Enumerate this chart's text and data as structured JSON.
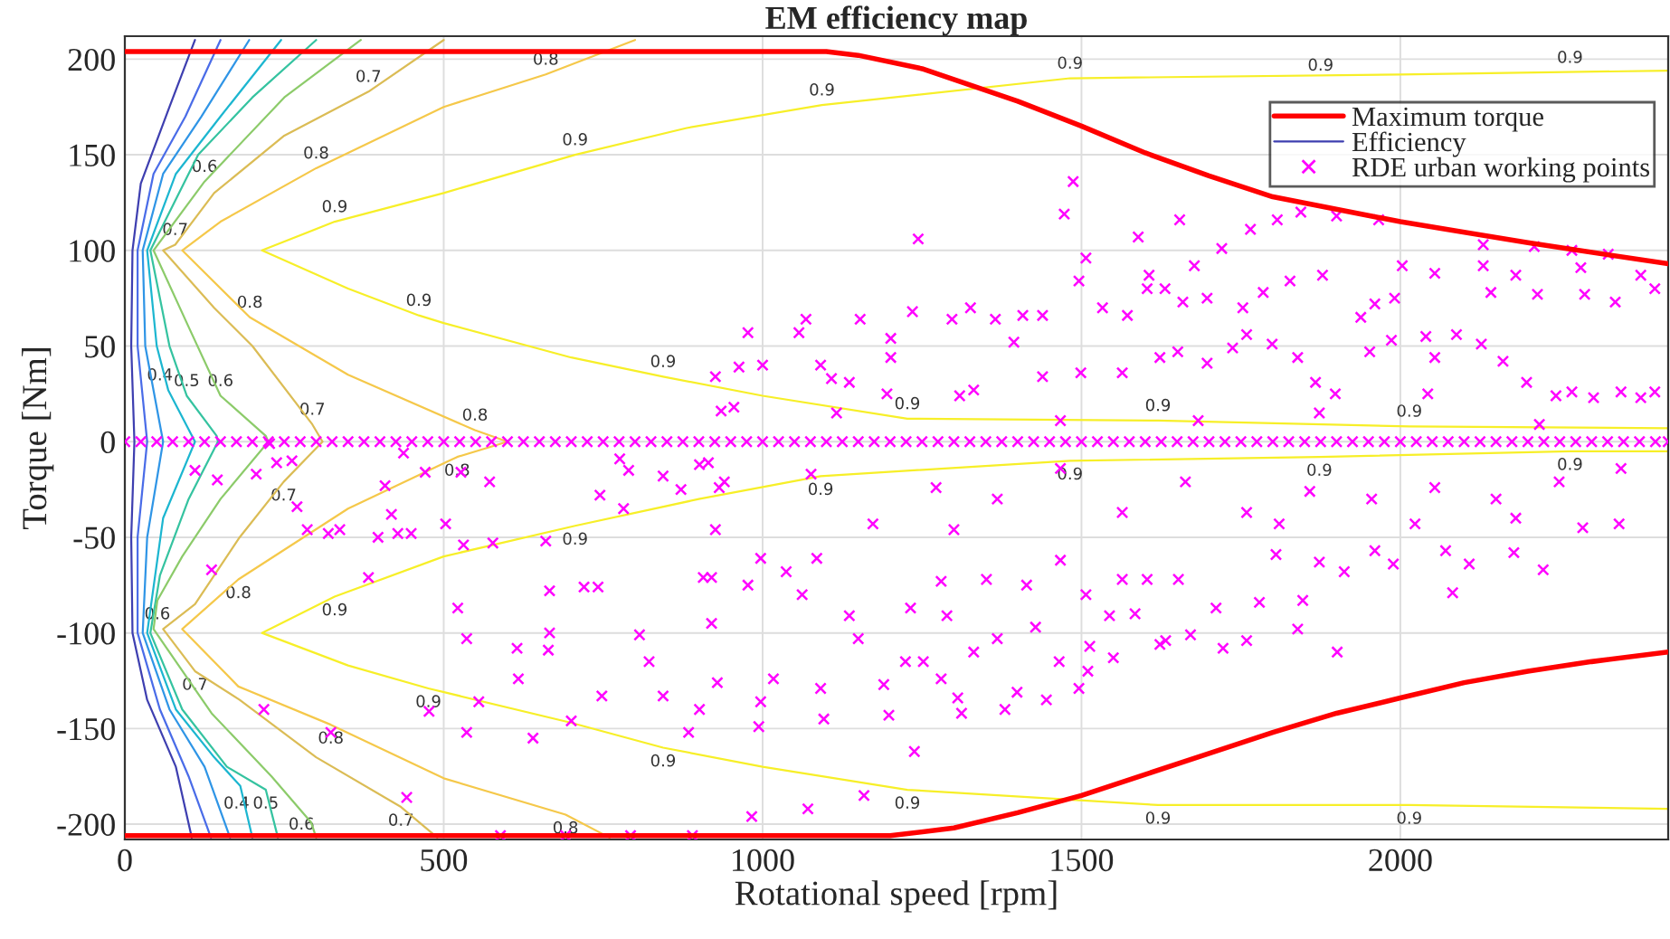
{
  "chart_data": {
    "type": "line",
    "title": "EM efficiency map",
    "xlabel": "Rotational speed [rpm]",
    "ylabel": "Torque [Nm]",
    "xlim": [
      0,
      2420
    ],
    "ylim": [
      -208,
      212
    ],
    "xticks": [
      0,
      500,
      1000,
      1500,
      2000
    ],
    "yticks": [
      -200,
      -150,
      -100,
      -50,
      0,
      50,
      100,
      150,
      200
    ],
    "grid": true,
    "legend": "top right",
    "series": [
      {
        "name": "Maximum torque",
        "color": "#ff0000",
        "x": [
          0,
          1100,
          1150,
          1250,
          1400,
          1500,
          1600,
          1700,
          1800,
          2000,
          2200,
          2420,
          null,
          0,
          1200,
          1300,
          1400,
          1500,
          1600,
          1700,
          1800,
          1900,
          2000,
          2100,
          2200,
          2300,
          2420
        ],
        "values": [
          204,
          204,
          202,
          195,
          178,
          165,
          151,
          139,
          128,
          115,
          104,
          93,
          null,
          -206,
          -206,
          -202,
          -194,
          -185,
          -174,
          -163,
          -152,
          -142,
          -134,
          -126,
          -120,
          -115,
          -110
        ]
      },
      {
        "name": "Efficiency",
        "color": "#3e3fb0",
        "x": [
          110,
          70,
          25,
          12,
          10,
          15,
          10,
          12,
          35,
          80,
          105
        ],
        "values": [
          210,
          175,
          135,
          100,
          50,
          0,
          -50,
          -100,
          -135,
          -170,
          -207
        ]
      },
      {
        "color": "#4a6ce8",
        "x": [
          150,
          95,
          45,
          20,
          20,
          35,
          20,
          20,
          55,
          100,
          135
        ],
        "values": [
          210,
          170,
          140,
          100,
          50,
          0,
          -50,
          -100,
          -140,
          -175,
          -207
        ]
      },
      {
        "color": "#2f95e6",
        "x": [
          195,
          120,
          60,
          28,
          32,
          60,
          35,
          28,
          70,
          125,
          165
        ],
        "values": [
          210,
          170,
          140,
          100,
          50,
          0,
          -50,
          -100,
          -140,
          -170,
          -207
        ]
      },
      {
        "color": "#1cb6d0",
        "x": [
          245,
          150,
          80,
          35,
          50,
          68,
          110,
          60,
          35,
          80,
          140,
          181,
          200
        ],
        "values": [
          210,
          170,
          140,
          100,
          50,
          27,
          0,
          -40,
          -100,
          -140,
          -165,
          -180,
          -207
        ]
      },
      {
        "color": "#35c3a0",
        "x": [
          300,
          200,
          115,
          40,
          70,
          97,
          144,
          146,
          100,
          55,
          40,
          90,
          160,
          221,
          240
        ],
        "values": [
          210,
          180,
          150,
          100,
          50,
          24,
          3,
          0,
          -30,
          -70,
          -100,
          -140,
          -170,
          -182,
          -207
        ]
      },
      {
        "color": "#8ccb6a",
        "x": [
          370,
          250,
          125,
          45,
          100,
          150,
          221,
          225,
          150,
          90,
          51,
          45,
          136,
          230,
          292,
          300
        ],
        "values": [
          210,
          180,
          136,
          100,
          60,
          24,
          3,
          0,
          -30,
          -60,
          -83,
          -98,
          -142,
          -175,
          -199,
          -207
        ]
      },
      {
        "color": "#dbbc55",
        "x": [
          500,
          382,
          250,
          140,
          79,
          60,
          140,
          200,
          294,
          310,
          249,
          180,
          110,
          60,
          110,
          180,
          300,
          433,
          490
        ],
        "values": [
          210,
          183,
          160,
          130,
          103,
          100,
          70,
          50,
          9,
          0,
          -21,
          -50,
          -85,
          -98,
          -120,
          -135,
          -165,
          -191,
          -207
        ]
      },
      {
        "color": "#f5c84a",
        "x": [
          800,
          660,
          500,
          300,
          150,
          90,
          196,
          350,
          549,
          600,
          521,
          350,
          178,
          90,
          178,
          323,
          500,
          691,
          760
        ],
        "values": [
          210,
          192,
          175,
          143,
          115,
          100,
          65,
          35,
          6,
          0,
          -8,
          -35,
          -72,
          -98,
          -128,
          -148,
          -176,
          -195,
          -207
        ]
      },
      {
        "color": "#f7ef28",
        "x": [
          2420,
          2000,
          1482,
          1093,
          881,
          706,
          500,
          329,
          215,
          350,
          461,
          500,
          700,
          844,
          1000,
          1227,
          1620,
          2014,
          2420
        ],
        "values": [
          194,
          192,
          190,
          176,
          164,
          150,
          130,
          115,
          100,
          80,
          66,
          62,
          44,
          34,
          24,
          12,
          11,
          8,
          7
        ]
      },
      {
        "color": "#f7ef28",
        "x": [
          2420,
          2266,
          1873,
          1482,
          1091,
          900,
          706,
          500,
          329,
          215,
          350,
          476,
          700,
          844,
          1000,
          1227,
          1620,
          2014,
          2420
        ],
        "values": [
          -5,
          -5,
          -8,
          -10,
          -18,
          -30,
          -44,
          -60,
          -81,
          -100,
          -117,
          -129,
          -147,
          -160,
          -170,
          -182,
          -190,
          -190,
          -192
        ]
      },
      {
        "name": "RDE urban working points",
        "type": "scatter",
        "color": "#ff00ff",
        "marker": "cross",
        "x": [
          0,
          25,
          50,
          75,
          100,
          125,
          150,
          175,
          200,
          225,
          250,
          275,
          300,
          325,
          350,
          375,
          400,
          425,
          450,
          475,
          500,
          525,
          550,
          575,
          600,
          625,
          650,
          675,
          700,
          725,
          750,
          775,
          800,
          825,
          850,
          875,
          900,
          925,
          950,
          975,
          1000,
          1025,
          1050,
          1075,
          1100,
          1125,
          1150,
          1175,
          1200,
          1225,
          1250,
          1275,
          1300,
          1325,
          1350,
          1375,
          1400,
          1425,
          1450,
          1475,
          1500,
          1525,
          1550,
          1575,
          1600,
          1625,
          1650,
          1675,
          1700,
          1725,
          1750,
          1775,
          1800,
          1825,
          1850,
          1875,
          1900,
          1925,
          1950,
          1975,
          2000,
          2025,
          2050,
          2075,
          2100,
          2125,
          2150,
          2175,
          2200,
          2225,
          2250,
          2275,
          2300,
          2325,
          2350,
          2375,
          2400,
          2420,
          110,
          145,
          206,
          227,
          238,
          262,
          270,
          286,
          319,
          337,
          136,
          218,
          323,
          382,
          408,
          397,
          418,
          428,
          449,
          437,
          471,
          477,
          442,
          503,
          527,
          531,
          522,
          536,
          555,
          536,
          572,
          577,
          615,
          617,
          640,
          660,
          666,
          666,
          664,
          700,
          720,
          742,
          745,
          748,
          782,
          776,
          790,
          807,
          822,
          844,
          844,
          872,
          884,
          907,
          932,
          915,
          589,
          691,
          793,
          890,
          1487,
          1473,
          1244,
          1589,
          1654,
          1720,
          1765,
          1807,
          1844,
          1900,
          1966,
          2130,
          2210,
          2269,
          2326,
          1507,
          1496,
          1677,
          1606,
          1878,
          2003,
          2054,
          2130,
          2181,
          2283,
          2377,
          977,
          1057,
          1068,
          1153,
          1201,
          1235,
          1297,
          1326,
          1365,
          1408,
          1439,
          1533,
          1572,
          1603,
          1631,
          1659,
          1697,
          1753,
          1785,
          1827,
          1938,
          1960,
          1991,
          2142,
          2215,
          2289,
          2337,
          2399,
          926,
          935,
          955,
          963,
          1000,
          1091,
          1108,
          1136,
          1201,
          1195,
          1309,
          1331,
          1394,
          1439,
          1499,
          1564,
          1623,
          1651,
          1697,
          1737,
          1759,
          1799,
          1839,
          1867,
          1898,
          1952,
          1986,
          2040,
          2088,
          2127,
          2161,
          2198,
          2218,
          2244,
          2269,
          2303,
          2346,
          2377,
          2399,
          2054,
          2043,
          1873,
          1683,
          1467,
          1116,
          901,
          940,
          926,
          920,
          920,
          929,
          901,
          977,
          997,
          997,
          994,
          983,
          1017,
          1037,
          1062,
          1091,
          1096,
          1085,
          1136,
          1150,
          1071,
          1159,
          1198,
          1190,
          1224,
          1232,
          1238,
          1252,
          1280,
          1289,
          1280,
          1306,
          1312,
          1300,
          1331,
          1351,
          1368,
          1380,
          1399,
          1414,
          1428,
          1445,
          1465,
          1467,
          1496,
          1507,
          1510,
          1513,
          1544,
          1550,
          1564,
          1584,
          1603,
          1623,
          1632,
          1652,
          1671,
          1711,
          1722,
          1759,
          1779,
          1805,
          1839,
          1847,
          1901,
          1873,
          1912,
          1960,
          1989,
          2082,
          2108,
          2178,
          2224,
          2286,
          2343,
          2071,
          1467,
          1663,
          1858,
          1955,
          2054,
          2150,
          2249,
          2346,
          1076,
          1272,
          1368,
          1564,
          1759,
          1810,
          2023,
          2181,
          1173
        ],
        "values": [
          0,
          0,
          0,
          0,
          0,
          0,
          0,
          0,
          0,
          0,
          0,
          0,
          0,
          0,
          0,
          0,
          0,
          0,
          0,
          0,
          0,
          0,
          0,
          0,
          0,
          0,
          0,
          0,
          0,
          0,
          0,
          0,
          0,
          0,
          0,
          0,
          0,
          0,
          0,
          0,
          0,
          0,
          0,
          0,
          0,
          0,
          0,
          0,
          0,
          0,
          0,
          0,
          0,
          0,
          0,
          0,
          0,
          0,
          0,
          0,
          0,
          0,
          0,
          0,
          0,
          0,
          0,
          0,
          0,
          0,
          0,
          0,
          0,
          0,
          0,
          0,
          0,
          0,
          0,
          0,
          0,
          0,
          0,
          0,
          0,
          0,
          0,
          0,
          0,
          0,
          0,
          0,
          0,
          0,
          0,
          0,
          0,
          0,
          -15,
          -20,
          -17,
          -1,
          -11,
          -10,
          -34,
          -46,
          -48,
          -46,
          -67,
          -140,
          -152,
          -71,
          -23,
          -50,
          -38,
          -48,
          -48,
          -6,
          -16,
          -141,
          -186,
          -43,
          -16,
          -54,
          -87,
          -103,
          -136,
          -152,
          -21,
          -53,
          -108,
          -124,
          -155,
          -52,
          -78,
          -100,
          -109,
          -146,
          -76,
          -76,
          -28,
          -133,
          -35,
          -9,
          -15,
          -101,
          -115,
          -133,
          -18,
          -25,
          -152,
          -71,
          -24,
          -11,
          -206,
          -206,
          -206,
          -206,
          136,
          119,
          106,
          107,
          116,
          101,
          111,
          116,
          120,
          118,
          116,
          103,
          102,
          100,
          98,
          96,
          84,
          92,
          87,
          87,
          92,
          88,
          92,
          87,
          91,
          87,
          57,
          57,
          64,
          64,
          54,
          68,
          64,
          70,
          64,
          66,
          66,
          70,
          66,
          80,
          80,
          73,
          75,
          70,
          78,
          84,
          65,
          72,
          75,
          78,
          77,
          77,
          73,
          80,
          34,
          16,
          18,
          39,
          40,
          40,
          33,
          31,
          44,
          25,
          24,
          27,
          52,
          34,
          36,
          36,
          44,
          47,
          41,
          49,
          56,
          51,
          44,
          31,
          25,
          47,
          53,
          55,
          56,
          51,
          42,
          31,
          9,
          24,
          26,
          23,
          26,
          23,
          26,
          44,
          25,
          15,
          11,
          11,
          15,
          -12,
          -21,
          -46,
          -71,
          -95,
          -126,
          -140,
          -75,
          -61,
          -136,
          -149,
          -196,
          -124,
          -68,
          -80,
          -129,
          -145,
          -61,
          -91,
          -103,
          -192,
          -185,
          -143,
          -127,
          -115,
          -87,
          -162,
          -115,
          -73,
          -91,
          -124,
          -134,
          -142,
          -46,
          -110,
          -72,
          -103,
          -140,
          -131,
          -75,
          -97,
          -135,
          -115,
          -62,
          -129,
          -80,
          -120,
          -107,
          -91,
          -113,
          -72,
          -90,
          -72,
          -106,
          -104,
          -72,
          -101,
          -87,
          -108,
          -104,
          -84,
          -59,
          -98,
          -83,
          -110,
          -63,
          -68,
          -57,
          -64,
          -79,
          -64,
          -58,
          -67,
          -45,
          -43,
          -57,
          -14,
          -21,
          -26,
          -30,
          -24,
          -30,
          -21,
          -14,
          -17,
          -24,
          -30,
          -37,
          -37,
          -43,
          -43,
          -40,
          -43
        ]
      }
    ],
    "annotations": [
      {
        "text": "0.9",
        "x": 706,
        "y": 150
      },
      {
        "text": "0.9",
        "x": 329,
        "y": 115
      },
      {
        "text": "0.9",
        "x": 461,
        "y": 66
      },
      {
        "text": "0.9",
        "x": 844,
        "y": 34
      },
      {
        "text": "0.9",
        "x": 1093,
        "y": 176
      },
      {
        "text": "0.9",
        "x": 1482,
        "y": 190
      },
      {
        "text": "0.9",
        "x": 1875,
        "y": 189
      },
      {
        "text": "0.9",
        "x": 2266,
        "y": 193
      },
      {
        "text": "0.9",
        "x": 1227,
        "y": 12
      },
      {
        "text": "0.9",
        "x": 1620,
        "y": 11
      },
      {
        "text": "0.9",
        "x": 2014,
        "y": 8
      },
      {
        "text": "0.9",
        "x": 1091,
        "y": -18
      },
      {
        "text": "0.9",
        "x": 1482,
        "y": -10
      },
      {
        "text": "0.9",
        "x": 1873,
        "y": -8
      },
      {
        "text": "0.9",
        "x": 2266,
        "y": -5
      },
      {
        "text": "0.9",
        "x": 706,
        "y": -44
      },
      {
        "text": "0.9",
        "x": 329,
        "y": -81
      },
      {
        "text": "0.9",
        "x": 476,
        "y": -129
      },
      {
        "text": "0.9",
        "x": 844,
        "y": -160
      },
      {
        "text": "0.9",
        "x": 1227,
        "y": -182
      },
      {
        "text": "0.9",
        "x": 1620,
        "y": -190
      },
      {
        "text": "0.9",
        "x": 2014,
        "y": -190
      },
      {
        "text": "0.8",
        "x": 660,
        "y": 192
      },
      {
        "text": "0.8",
        "x": 300,
        "y": 143
      },
      {
        "text": "0.8",
        "x": 196,
        "y": 65
      },
      {
        "text": "0.8",
        "x": 549,
        "y": 6
      },
      {
        "text": "0.8",
        "x": 521,
        "y": -8
      },
      {
        "text": "0.8",
        "x": 178,
        "y": -72
      },
      {
        "text": "0.8",
        "x": 323,
        "y": -148
      },
      {
        "text": "0.8",
        "x": 691,
        "y": -195
      },
      {
        "text": "0.7",
        "x": 382,
        "y": 183
      },
      {
        "text": "0.7",
        "x": 79,
        "y": 103
      },
      {
        "text": "0.7",
        "x": 294,
        "y": 9
      },
      {
        "text": "0.7",
        "x": 249,
        "y": -21
      },
      {
        "text": "0.7",
        "x": 110,
        "y": -120
      },
      {
        "text": "0.7",
        "x": 433,
        "y": -191
      },
      {
        "text": "0.6",
        "x": 125,
        "y": 136
      },
      {
        "text": "0.6",
        "x": 150,
        "y": 24
      },
      {
        "text": "0.6",
        "x": 51,
        "y": -83
      },
      {
        "text": "0.6",
        "x": 277,
        "y": -193
      },
      {
        "text": "0.5",
        "x": 97,
        "y": 24
      },
      {
        "text": "0.5",
        "x": 221,
        "y": -182
      },
      {
        "text": "0.4",
        "x": 55,
        "y": 27
      },
      {
        "text": "0.4",
        "x": 175,
        "y": -182
      }
    ]
  }
}
